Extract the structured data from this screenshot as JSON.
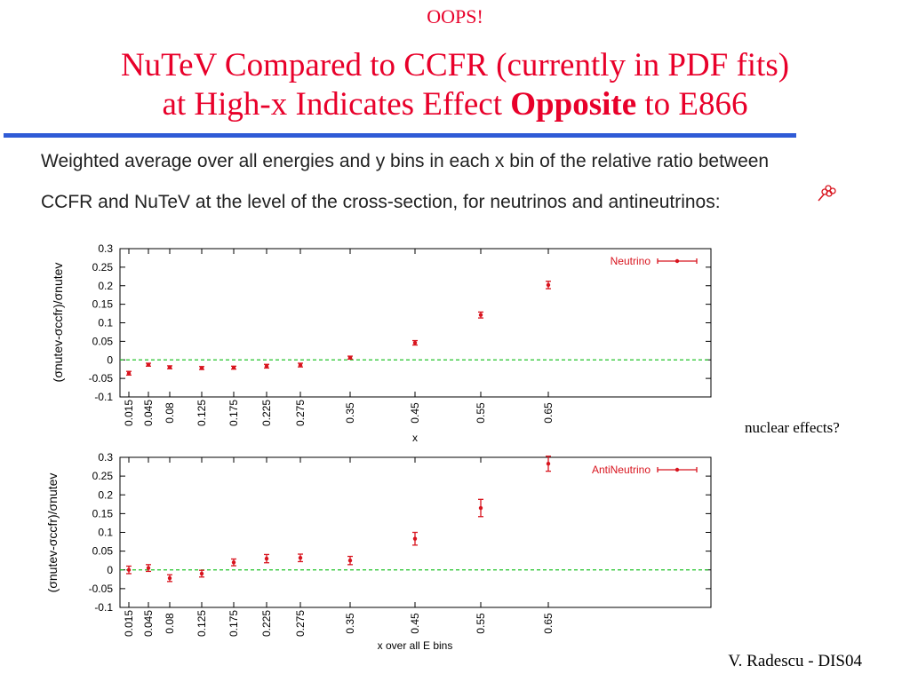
{
  "header": {
    "oops": "OOPS!",
    "title_line1": "NuTeV Compared to CCFR (currently in PDF fits)",
    "title_line2_pre": "at High-x Indicates Effect ",
    "title_line2_bold": "Opposite",
    "title_line2_post": " to E866"
  },
  "description": {
    "line1": "Weighted average over all energies and y bins in each x bin of the relative ratio between",
    "line2": "CCFR and NuTeV at the level of the cross-section, for neutrinos and antineutrinos:"
  },
  "side_note": "nuclear effects?",
  "credit": "V. Radescu - DIS04",
  "colors": {
    "title": "#e8002a",
    "rule": "#2f5bd6",
    "data": "#d8141e",
    "zero_line": "#22c42a"
  },
  "chart_data": [
    {
      "type": "scatter",
      "legend": "Neutrino",
      "legend_position": "top-right",
      "ylabel": "(σnutev-σccfr)/σnutev",
      "xlabel": "x",
      "x_ticks": [
        "0.015",
        "0.045",
        "0.08",
        "0.125",
        "0.175",
        "0.225",
        "0.275",
        "0.35",
        "0.45",
        "0.55",
        "0.65"
      ],
      "y_ticks": [
        "0.3",
        "0.25",
        "0.2",
        "0.15",
        "0.1",
        "0.05",
        "0",
        "-0.05",
        "-0.1"
      ],
      "ylim": [
        -0.1,
        0.3
      ],
      "zero_line": true,
      "x": [
        0.015,
        0.045,
        0.08,
        0.125,
        0.175,
        0.225,
        0.275,
        0.35,
        0.45,
        0.55,
        0.65
      ],
      "y": [
        -0.036,
        -0.013,
        -0.02,
        -0.022,
        -0.021,
        -0.017,
        -0.014,
        0.006,
        0.046,
        0.121,
        0.202
      ],
      "err": [
        0.005,
        0.004,
        0.004,
        0.004,
        0.004,
        0.005,
        0.005,
        0.004,
        0.006,
        0.008,
        0.01
      ]
    },
    {
      "type": "scatter",
      "legend": "AntiNeutrino",
      "legend_position": "top-right",
      "ylabel": "(σnutev-σccfr)/σnutev",
      "xlabel": "x over all E bins",
      "x_ticks": [
        "0.015",
        "0.045",
        "0.08",
        "0.125",
        "0.175",
        "0.225",
        "0.275",
        "0.35",
        "0.45",
        "0.55",
        "0.65"
      ],
      "y_ticks": [
        "0.3",
        "0.25",
        "0.2",
        "0.15",
        "0.1",
        "0.05",
        "0",
        "-0.05",
        "-0.1"
      ],
      "ylim": [
        -0.1,
        0.3
      ],
      "zero_line": true,
      "x": [
        0.015,
        0.045,
        0.08,
        0.125,
        0.175,
        0.225,
        0.275,
        0.35,
        0.45,
        0.55,
        0.65
      ],
      "y": [
        0.0,
        0.005,
        -0.022,
        -0.01,
        0.02,
        0.03,
        0.032,
        0.025,
        0.083,
        0.165,
        0.283
      ],
      "err": [
        0.01,
        0.009,
        0.009,
        0.009,
        0.009,
        0.011,
        0.01,
        0.011,
        0.017,
        0.023,
        0.02
      ]
    }
  ]
}
